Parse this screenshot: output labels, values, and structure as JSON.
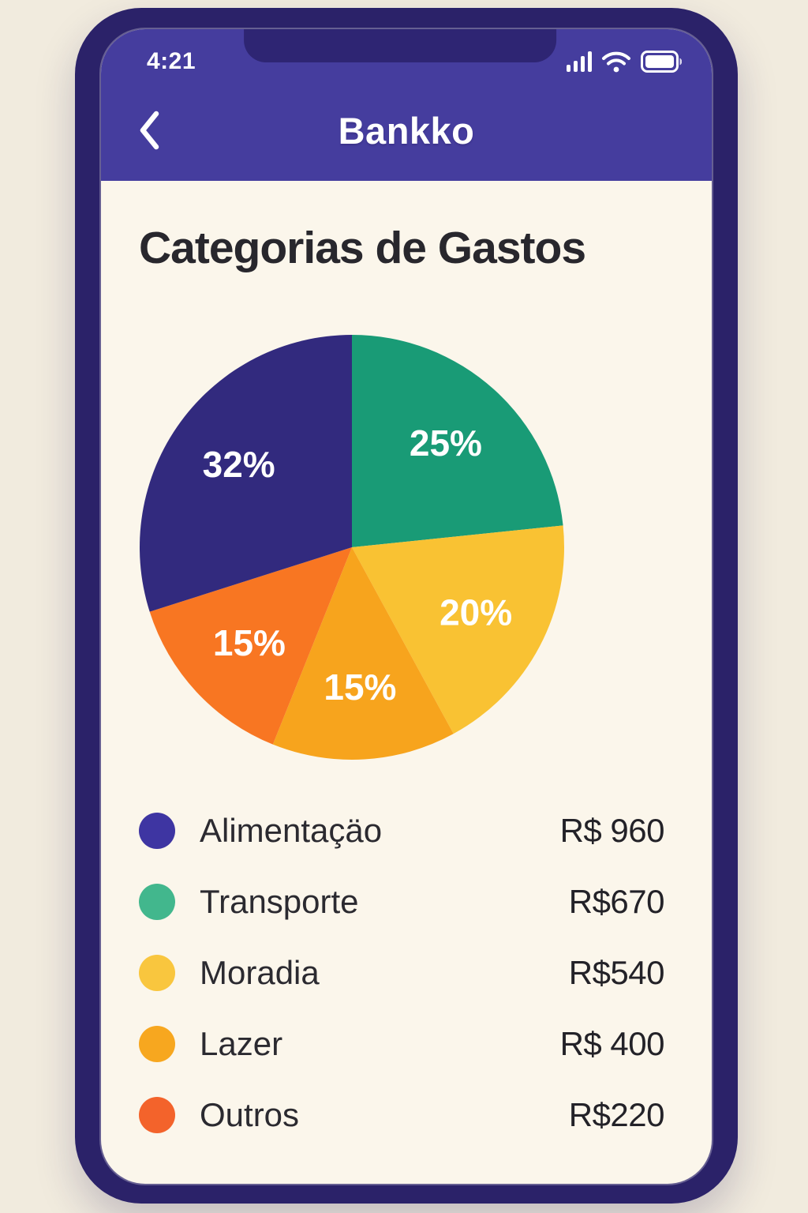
{
  "status_bar": {
    "time": "4:21",
    "icons": [
      "signal-icon",
      "wifi-icon",
      "battery-icon"
    ]
  },
  "header": {
    "title": "Bankko",
    "back_icon": "chevron-left"
  },
  "page": {
    "title": "Categorias de Gastos"
  },
  "chart_data": {
    "type": "pie",
    "title": "Categorias de Gastos",
    "start_angle_deg": -90,
    "direction": "clockwise",
    "labels_color": "#ffffff",
    "slices": [
      {
        "label": "Transporte",
        "value": 25,
        "percent_label": "25%",
        "color": "#199b76"
      },
      {
        "label": "Moradia",
        "value": 20,
        "percent_label": "20%",
        "color": "#f9c233"
      },
      {
        "label": "Lazer",
        "value": 15,
        "percent_label": "15%",
        "color": "#f7a41d"
      },
      {
        "label": "Outros",
        "value": 15,
        "percent_label": "15%",
        "color": "#f87622"
      },
      {
        "label": "Alimentaçäo",
        "value": 32,
        "percent_label": "32%",
        "color": "#322a7e"
      }
    ]
  },
  "legend": {
    "rows": [
      {
        "label": "Alimentaçäo",
        "value": "R$ 960",
        "dot_color": "#3e35a2"
      },
      {
        "label": "Transporte",
        "value": "R$670",
        "dot_color": "#42b78d"
      },
      {
        "label": "Moradia",
        "value": "R$540",
        "dot_color": "#f9c63e"
      },
      {
        "label": "Lazer",
        "value": "R$ 400",
        "dot_color": "#f7a71f"
      },
      {
        "label": "Outros",
        "value": "R$220",
        "dot_color": "#f3632b"
      }
    ]
  }
}
